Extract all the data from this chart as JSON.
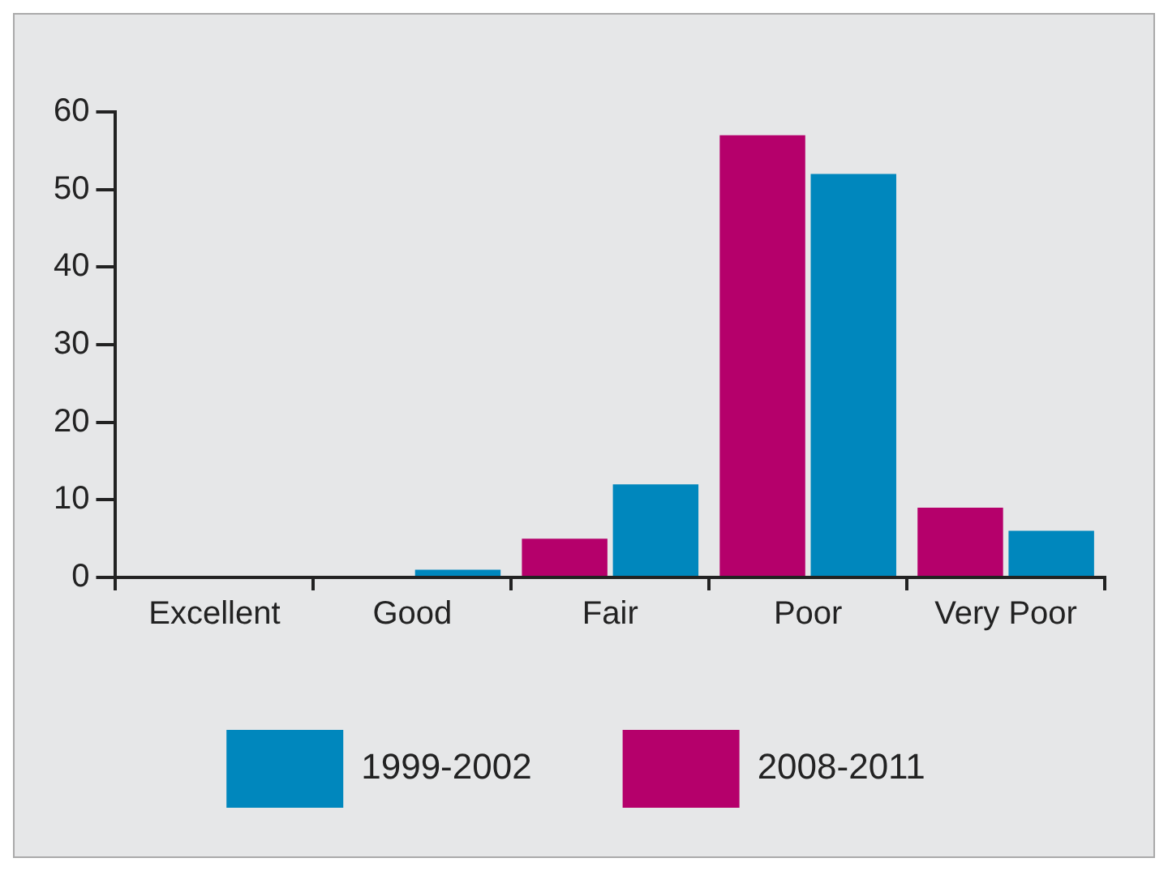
{
  "chart_data": {
    "type": "bar",
    "categories": [
      "Excellent",
      "Good",
      "Fair",
      "Poor",
      "Very Poor"
    ],
    "series": [
      {
        "name": "2008-2011",
        "color": "#b5006b",
        "values": [
          0,
          0,
          5,
          57,
          9
        ]
      },
      {
        "name": "1999-2002",
        "color": "#0087bd",
        "values": [
          0,
          1,
          12,
          52,
          6
        ]
      }
    ],
    "ylim": [
      0,
      60
    ],
    "yticks": [
      0,
      10,
      20,
      30,
      40,
      50,
      60
    ],
    "grid": false,
    "legend": "bottom"
  }
}
